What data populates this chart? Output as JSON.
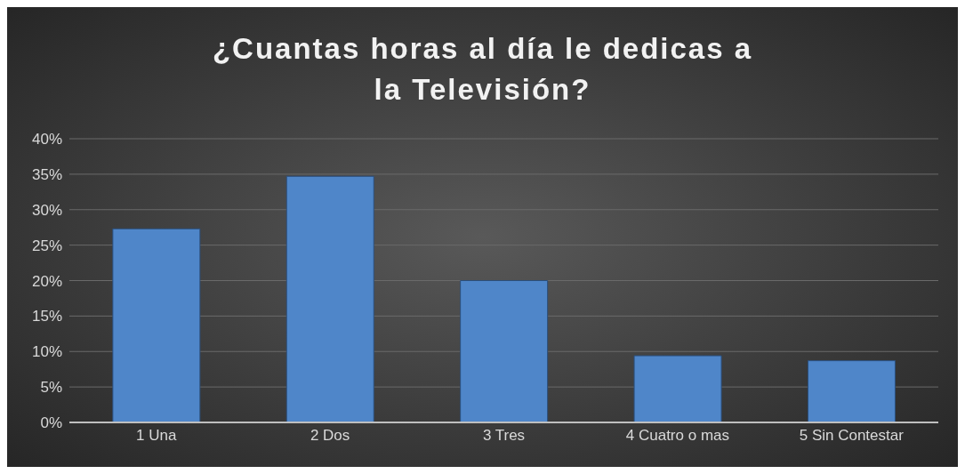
{
  "chart_data": {
    "type": "bar",
    "title": "¿Cuantas horas al día le dedicas a la Televisión?",
    "categories": [
      "1 Una",
      "2 Dos",
      "3 Tres",
      "4 Cuatro o mas",
      "5 Sin Contestar"
    ],
    "values": [
      27.3,
      34.7,
      20.0,
      9.4,
      8.7
    ],
    "color": "#4f86c9",
    "ylim": [
      0,
      40
    ],
    "yticks": [
      {
        "value": 0,
        "label": "0%"
      },
      {
        "value": 5,
        "label": "5%"
      },
      {
        "value": 10,
        "label": "10%"
      },
      {
        "value": 15,
        "label": "15%"
      },
      {
        "value": 20,
        "label": "20%"
      },
      {
        "value": 25,
        "label": "25%"
      },
      {
        "value": 30,
        "label": "30%"
      },
      {
        "value": 35,
        "label": "35%"
      },
      {
        "value": 40,
        "label": "40%"
      }
    ],
    "grid": "y",
    "legend": false
  }
}
